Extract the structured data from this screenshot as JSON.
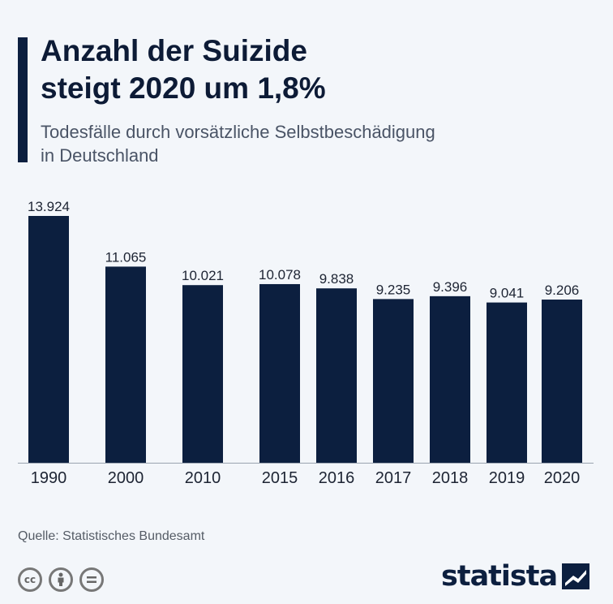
{
  "header": {
    "title_line1": "Anzahl der Suizide",
    "title_line2": "steigt 2020 um 1,8%",
    "subtitle_line1": "Todesfälle durch vorsätzliche Selbstbeschädigung",
    "subtitle_line2": "in Deutschland"
  },
  "footer": {
    "source": "Quelle: Statistisches Bundesamt",
    "brand": "statista",
    "license_icons": [
      "cc-icon",
      "attribution-icon",
      "no-derivatives-icon"
    ]
  },
  "colors": {
    "bar": "#0c1f3f",
    "accent": "#0c1f3f",
    "background": "#f3f6fa"
  },
  "chart_data": {
    "type": "bar",
    "categories": [
      "1990",
      "2000",
      "2010",
      "2015",
      "2016",
      "2017",
      "2018",
      "2019",
      "2020"
    ],
    "values": [
      13924,
      11065,
      10021,
      10078,
      9838,
      9235,
      9396,
      9041,
      9206
    ],
    "value_labels": [
      "13.924",
      "11.065",
      "10.021",
      "10.078",
      "9.838",
      "9.235",
      "9.396",
      "9.041",
      "9.206"
    ],
    "ylim": [
      0,
      13924
    ],
    "grid": false,
    "legend": "none"
  }
}
